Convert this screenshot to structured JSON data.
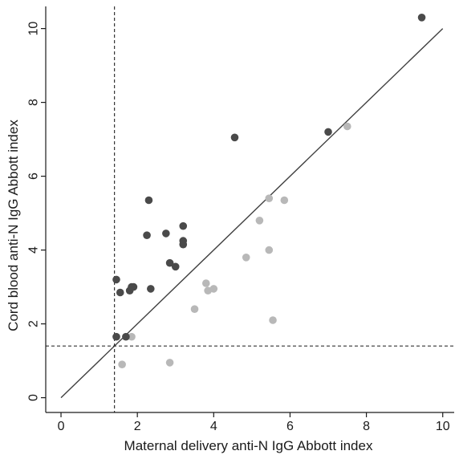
{
  "chart_data": {
    "type": "scatter",
    "title": "",
    "xlabel": "Maternal delivery anti-N IgG Abbott index",
    "ylabel": "Cord blood anti-N IgG Abbott index",
    "xlim": [
      -0.4,
      10.3
    ],
    "ylim": [
      -0.4,
      10.6
    ],
    "xticks": [
      0,
      2,
      4,
      6,
      8,
      10
    ],
    "yticks": [
      0,
      2,
      4,
      6,
      8,
      10
    ],
    "grid": false,
    "legend": "none",
    "reference_lines": {
      "identity_line": {
        "from": [
          0,
          0
        ],
        "to": [
          10,
          10
        ],
        "color": "#404040"
      },
      "vertical_cutoff_x": 1.4,
      "horizontal_cutoff_y": 1.4
    },
    "series": [
      {
        "color": "#4a4a4a",
        "points": [
          [
            1.45,
            3.2
          ],
          [
            1.55,
            2.85
          ],
          [
            1.8,
            2.9
          ],
          [
            1.85,
            3.0
          ],
          [
            1.9,
            3.0
          ],
          [
            2.25,
            4.4
          ],
          [
            2.3,
            5.35
          ],
          [
            2.35,
            2.95
          ],
          [
            2.75,
            4.45
          ],
          [
            2.85,
            3.65
          ],
          [
            3.0,
            3.55
          ],
          [
            3.2,
            4.65
          ],
          [
            3.2,
            4.25
          ],
          [
            3.2,
            4.15
          ],
          [
            4.55,
            7.05
          ],
          [
            7.0,
            7.2
          ],
          [
            9.45,
            10.3
          ],
          [
            1.45,
            1.65
          ],
          [
            1.7,
            1.65
          ]
        ]
      },
      {
        "color": "#b8b8b8",
        "points": [
          [
            1.6,
            0.9
          ],
          [
            1.85,
            1.65
          ],
          [
            2.85,
            0.95
          ],
          [
            3.5,
            2.4
          ],
          [
            3.8,
            3.1
          ],
          [
            3.85,
            2.9
          ],
          [
            4.0,
            2.95
          ],
          [
            4.85,
            3.8
          ],
          [
            5.2,
            4.8
          ],
          [
            5.45,
            5.4
          ],
          [
            5.45,
            4.0
          ],
          [
            5.55,
            2.1
          ],
          [
            5.85,
            5.35
          ],
          [
            7.5,
            7.35
          ]
        ]
      }
    ]
  }
}
